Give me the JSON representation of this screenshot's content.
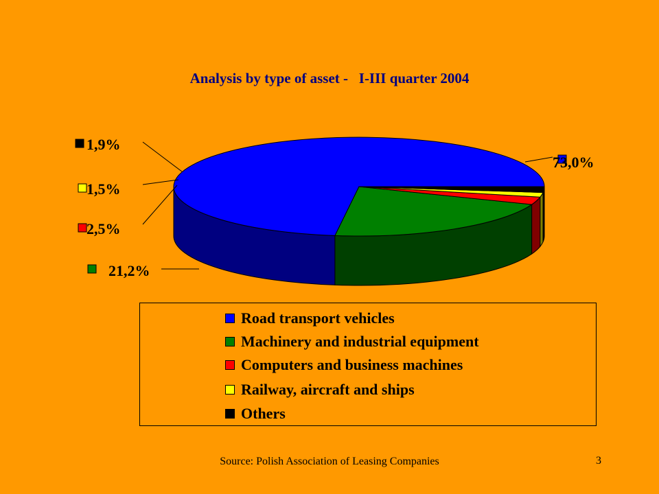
{
  "slide": {
    "title": "Analysis by type of asset -   I-III quarter 2004",
    "source": "Source: Polish Association of Leasing Companies",
    "page_number": "3"
  },
  "colors": {
    "background": "#FF9900",
    "title": "#000080"
  },
  "chart_data": {
    "type": "pie",
    "title": "Analysis by type of asset -   I-III quarter 2004",
    "legend_position": "bottom",
    "slices": [
      {
        "name": "Road transport vehicles",
        "value": 73.0,
        "label": "73,0%",
        "color": "#0000FF",
        "side_color": "#000080"
      },
      {
        "name": "Machinery and industrial equipment",
        "value": 21.2,
        "label": "21,2%",
        "color": "#008000",
        "side_color": "#004000"
      },
      {
        "name": "Computers and business machines",
        "value": 2.5,
        "label": "2,5%",
        "color": "#FF0000",
        "side_color": "#800000"
      },
      {
        "name": "Railway, aircraft and ships",
        "value": 1.5,
        "label": "1,5%",
        "color": "#FFFF00",
        "side_color": "#808000"
      },
      {
        "name": "Others",
        "value": 1.9,
        "label": "1,9%",
        "color": "#000000",
        "side_color": "#000000"
      }
    ]
  }
}
